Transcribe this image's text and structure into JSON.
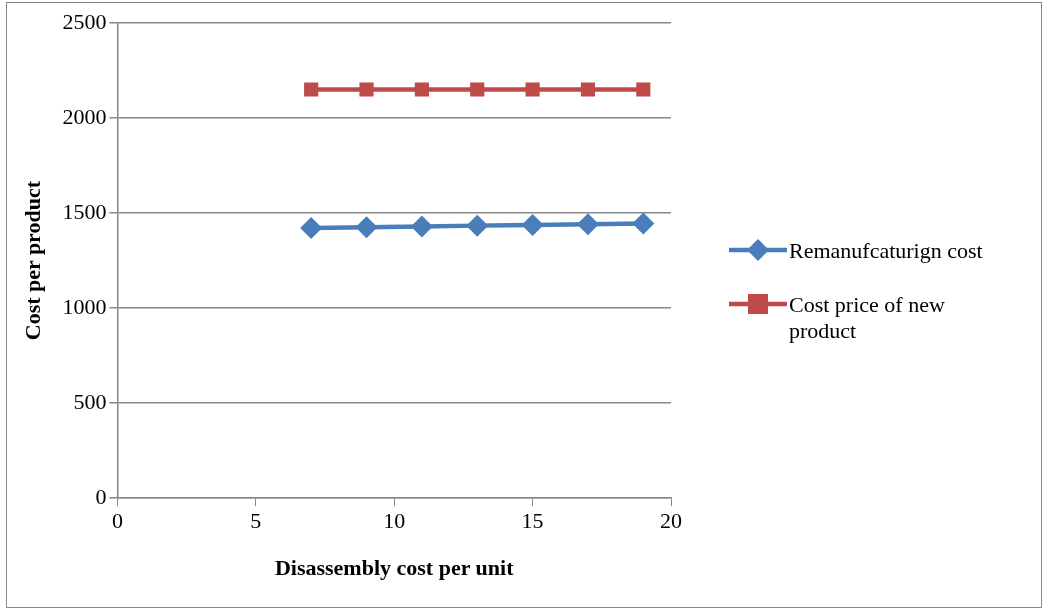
{
  "chart_data": {
    "type": "line",
    "xlabel": "Disassembly cost per unit",
    "ylabel": "Cost per product",
    "x": [
      7,
      9,
      11,
      13,
      15,
      17,
      19
    ],
    "series": [
      {
        "name": "Remanufcaturign cost",
        "color": "#4a7ebb",
        "marker": "diamond",
        "values": [
          1422,
          1426,
          1430,
          1434,
          1437,
          1441,
          1445
        ]
      },
      {
        "name": "Cost price of new product",
        "color": "#be4b48",
        "marker": "square",
        "values": [
          2150,
          2150,
          2150,
          2150,
          2150,
          2150,
          2150
        ]
      }
    ],
    "xlim": [
      0,
      20
    ],
    "xticks": [
      0,
      5,
      10,
      15,
      20
    ],
    "ylim": [
      0,
      2500
    ],
    "yticks": [
      0,
      500,
      1000,
      1500,
      2000,
      2500
    ],
    "grid": "y",
    "legend": "right",
    "line_style": "solid"
  }
}
